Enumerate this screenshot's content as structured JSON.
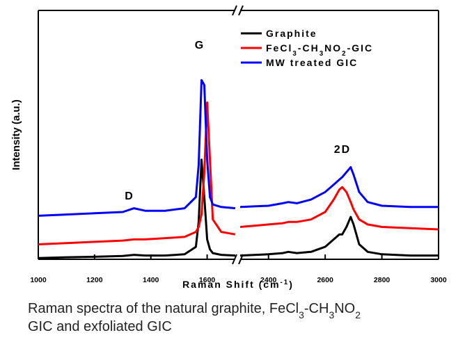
{
  "chart_data": {
    "type": "line",
    "x_label": "Raman Shift (cm-1)",
    "y_label": "Intensity (a.u.)",
    "annotations": [
      "G",
      "D",
      "2D"
    ],
    "caption": [
      "Raman spectra of the natural graphite, FeCl3-CH3NO2",
      "GIC and exfoliated GIC"
    ],
    "xlim": [
      1000,
      3000
    ],
    "xbreak": [
      1700,
      2300
    ],
    "xticks": [
      1000,
      1200,
      1400,
      1600,
      2400,
      2600,
      2800,
      3000
    ],
    "ylim": [
      0,
      100
    ],
    "legend": "upper right",
    "x": [
      1000,
      1100,
      1200,
      1300,
      1340,
      1380,
      1450,
      1520,
      1560,
      1570,
      1580,
      1590,
      1600,
      1610,
      1620,
      1650,
      1700,
      2000,
      2300,
      2400,
      2450,
      2470,
      2500,
      2550,
      2600,
      2630,
      2650,
      2660,
      2675,
      2690,
      2700,
      2720,
      2750,
      2800,
      2900,
      3000
    ],
    "series": [
      {
        "name": "Graphite",
        "color": "#000000",
        "values": [
          0.5,
          0.8,
          1,
          1.3,
          1.8,
          1.5,
          1.5,
          2,
          5,
          15,
          40,
          25,
          8,
          4,
          2.5,
          1.8,
          1.5,
          null,
          1.5,
          2,
          2.5,
          3,
          2.5,
          3,
          5,
          8,
          10,
          10,
          13,
          17,
          14,
          6,
          3,
          2,
          1.5,
          1.5
        ]
      },
      {
        "name": "FeCl3-CH3NO2-GIC",
        "color": "#ff0000",
        "values": [
          6,
          6.5,
          7,
          7.5,
          8,
          8,
          8.5,
          9,
          11,
          13,
          18,
          35,
          63,
          40,
          16,
          11,
          10,
          null,
          13,
          14,
          14.5,
          15,
          15,
          16,
          19,
          24,
          28,
          29,
          27,
          23,
          20,
          16,
          14,
          13,
          12.5,
          12
        ]
      },
      {
        "name": "MW treated GIC",
        "color": "#0000ff",
        "values": [
          17.5,
          18,
          18.5,
          19,
          20.5,
          19.5,
          19.5,
          20.5,
          25,
          38,
          72,
          70,
          40,
          25,
          22,
          21,
          20.5,
          null,
          21,
          21.5,
          22.5,
          23,
          22.5,
          24,
          27,
          30,
          32,
          33,
          35,
          37,
          34,
          27,
          23,
          21.5,
          21,
          21
        ]
      }
    ]
  }
}
